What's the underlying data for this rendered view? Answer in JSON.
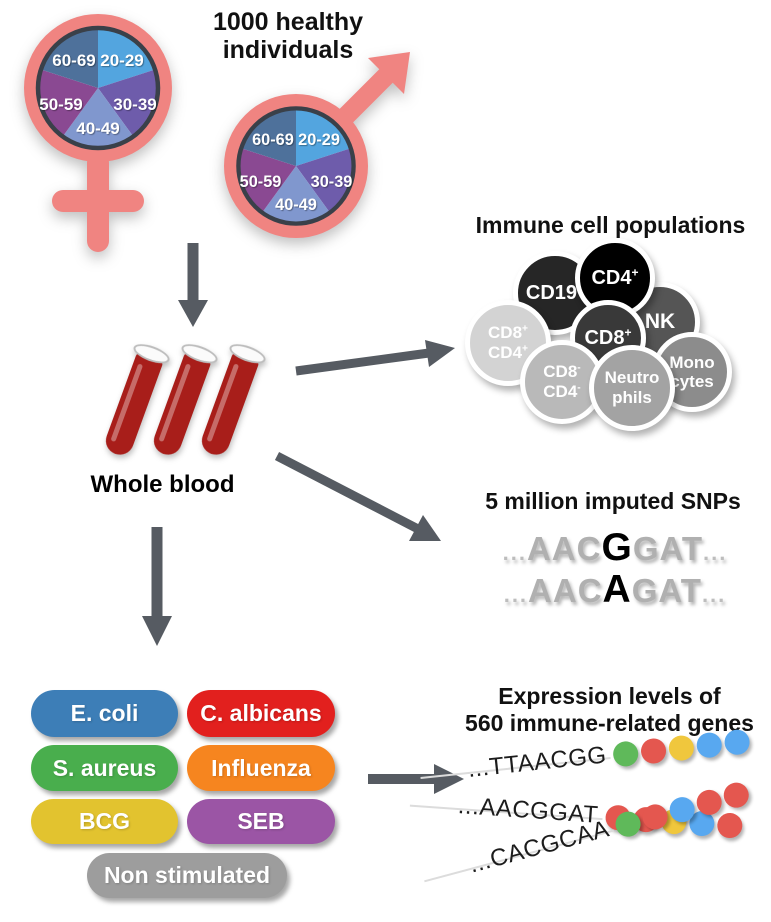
{
  "palette": {
    "symbol_pink": "#f08481",
    "arrow_gray": "#565b62",
    "pie_border": "#3a4049"
  },
  "cohort": {
    "title_line1": "1000 healthy",
    "title_line2": "individuals",
    "age_groups": [
      {
        "label": "20-29",
        "color": "#53a5df"
      },
      {
        "label": "30-39",
        "color": "#6e5cab"
      },
      {
        "label": "40-49",
        "color": "#8097ce"
      },
      {
        "label": "50-59",
        "color": "#8a4992"
      },
      {
        "label": "60-69",
        "color": "#4e719b"
      }
    ]
  },
  "whole_blood": {
    "label": "Whole blood",
    "blood_color": "#a81e1a"
  },
  "immune_cells": {
    "title": "Immune cell populations",
    "cells": [
      {
        "name": "NK",
        "line1": "NK",
        "sup1": "",
        "line2": "",
        "sup2": "",
        "color": "#555555"
      },
      {
        "name": "CD19+",
        "line1": "CD19",
        "sup1": "+",
        "line2": "",
        "sup2": "",
        "color": "#262626"
      },
      {
        "name": "CD4+",
        "line1": "CD4",
        "sup1": "+",
        "line2": "",
        "sup2": "",
        "color": "#000000"
      },
      {
        "name": "Monocytes",
        "line1": "Mono",
        "sup1": "",
        "line2": "cytes",
        "sup2": "",
        "color": "#8c8c8c"
      },
      {
        "name": "CD8+",
        "line1": "CD8",
        "sup1": "+",
        "line2": "",
        "sup2": "",
        "color": "#393939"
      },
      {
        "name": "CD8+CD4+",
        "line1": "CD8",
        "sup1": "+",
        "line2": "CD4",
        "sup2": "+",
        "color": "#d3d3d3"
      },
      {
        "name": "CD8-CD4-",
        "line1": "CD8",
        "sup1": "-",
        "line2": "CD4",
        "sup2": "-",
        "color": "#b9b9b9"
      },
      {
        "name": "Neutrophils",
        "line1": "Neutro",
        "sup1": "",
        "line2": "phils",
        "sup2": "",
        "color": "#a3a3a3"
      }
    ]
  },
  "snps": {
    "title": "5 million imputed SNPs",
    "sequences": [
      {
        "pre": "...",
        "left": "AAC",
        "variant": "G",
        "right": "GAT",
        "post": "..."
      },
      {
        "pre": "...",
        "left": "AAC",
        "variant": "A",
        "right": "GAT",
        "post": "..."
      }
    ]
  },
  "stimulations": {
    "items": [
      {
        "label": "E. coli",
        "color": "#3d7eb7"
      },
      {
        "label": "C. albicans",
        "color": "#e2201e"
      },
      {
        "label": "S. aureus",
        "color": "#49ae4d"
      },
      {
        "label": "Influenza",
        "color": "#f6851f"
      },
      {
        "label": "BCG",
        "color": "#e2c32f"
      },
      {
        "label": "SEB",
        "color": "#9b55a5"
      },
      {
        "label": "Non stimulated",
        "color": "#9d9d9d"
      }
    ]
  },
  "expression": {
    "title_line1": "Expression levels of",
    "title_line2": "560 immune-related genes",
    "dot_colors": {
      "green": "#5fb95a",
      "red": "#e4574f",
      "yellow": "#f0c73d",
      "blue": "#58a8f0"
    },
    "sequences": [
      {
        "text": "...TTAACGG",
        "dots": [
          "green",
          "red",
          "yellow",
          "blue",
          "blue"
        ]
      },
      {
        "text": "...AACGGAT",
        "dots": [
          "red",
          "red",
          "yellow",
          "blue",
          "red"
        ]
      },
      {
        "text": "...CACGCAA",
        "dots": [
          "green",
          "red",
          "blue",
          "red",
          "red"
        ]
      }
    ]
  }
}
